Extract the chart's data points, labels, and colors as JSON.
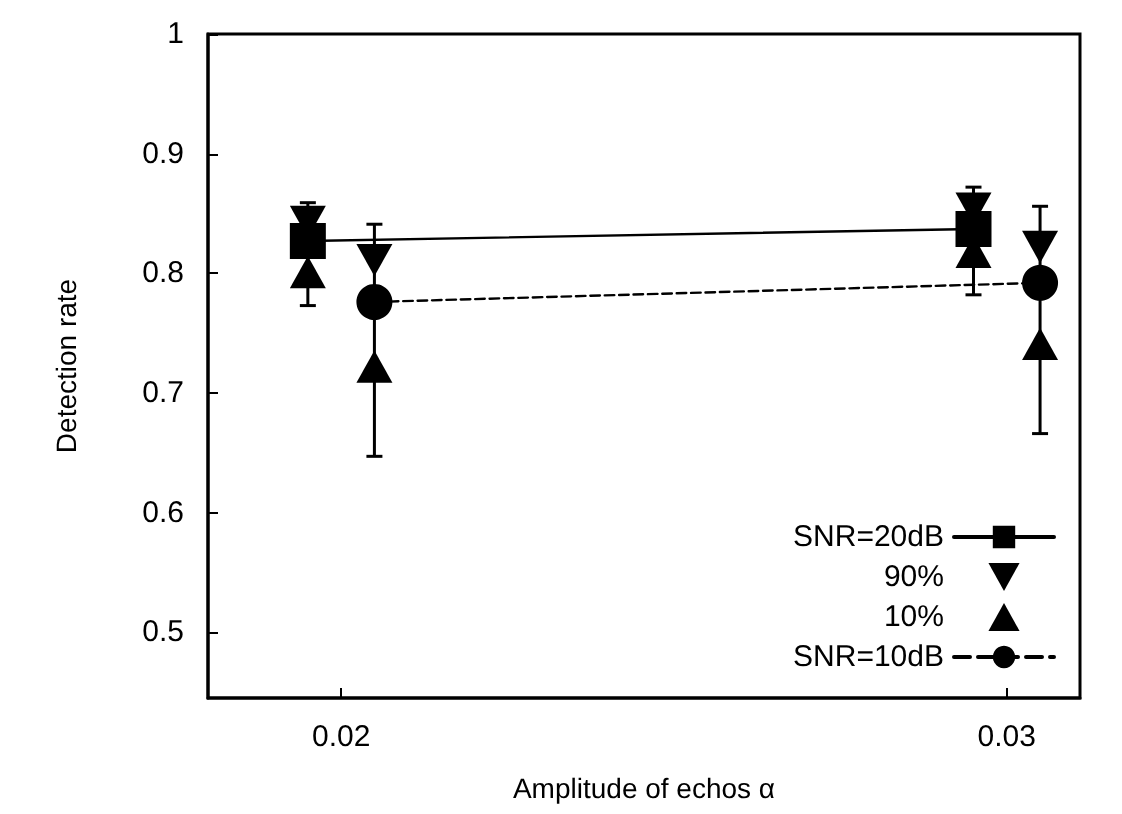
{
  "chart_data": {
    "type": "line",
    "xlabel": "Amplitude of echos α",
    "ylabel": "Detection rate",
    "xlim": [
      0.018,
      0.0311
    ],
    "xticks": [
      0.02,
      0.03
    ],
    "ylim": [
      0.445,
      1
    ],
    "yticks": [
      0.5,
      0.6,
      0.7,
      0.8,
      0.9,
      1
    ],
    "grid": false,
    "legend": "bottom right",
    "series": [
      {
        "name": "SNR=20dB",
        "type": "line",
        "marker": "square",
        "line_style": "solid",
        "color": "#000000",
        "x": [
          0.0195,
          0.0295
        ],
        "values": [
          0.827,
          0.837
        ],
        "errors": [
          [
            0.773,
            0.859
          ],
          [
            0.782,
            0.872
          ]
        ]
      },
      {
        "name": "90%",
        "type": "scatter",
        "marker": "triangle_down",
        "color": "#000000",
        "x": [
          0.0195,
          0.0205,
          0.0295,
          0.0305
        ],
        "values": [
          0.843,
          0.811,
          0.854,
          0.822
        ]
      },
      {
        "name": "10%",
        "type": "scatter",
        "marker": "triangle",
        "color": "#000000",
        "x": [
          0.0195,
          0.0205,
          0.0295,
          0.0305
        ],
        "values": [
          0.801,
          0.722,
          0.818,
          0.741
        ]
      },
      {
        "name": "SNR=10dB",
        "type": "line",
        "marker": "circle",
        "line_style": "dashed",
        "color": "#000000",
        "x": [
          0.0205,
          0.0305
        ],
        "values": [
          0.776,
          0.792
        ],
        "errors": [
          [
            0.647,
            0.841
          ],
          [
            0.666,
            0.856
          ]
        ]
      }
    ]
  }
}
